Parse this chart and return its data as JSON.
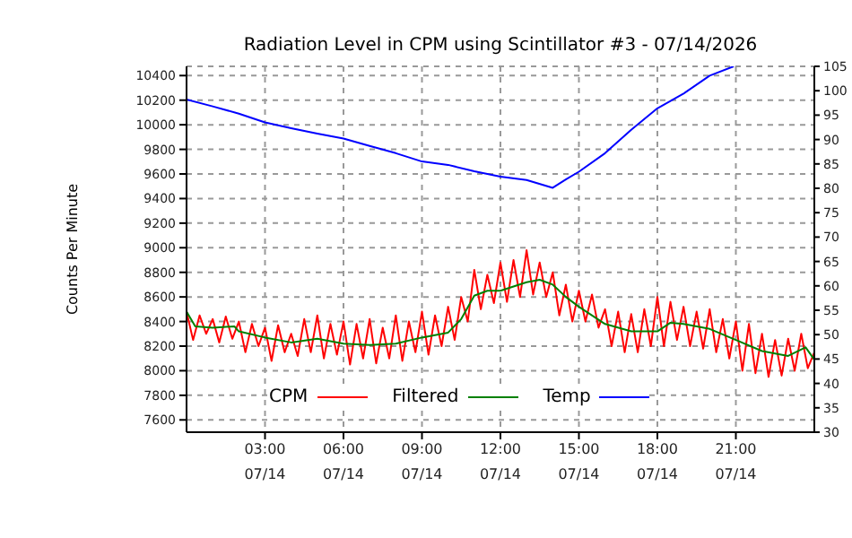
{
  "chart_data": {
    "type": "line",
    "title": "Radiation Level in CPM using Scintillator #3 - 07/14/2026",
    "ylabel": "Counts Per Minute",
    "xlim": [
      "2026-07-14T00:00",
      "2026-07-15T00:00"
    ],
    "xticks": [
      {
        "value": "2026-07-14T03:00",
        "label": "03:00\n07/14"
      },
      {
        "value": "2026-07-14T06:00",
        "label": "06:00\n07/14"
      },
      {
        "value": "2026-07-14T09:00",
        "label": "09:00\n07/14"
      },
      {
        "value": "2026-07-14T12:00",
        "label": "12:00\n07/14"
      },
      {
        "value": "2026-07-14T15:00",
        "label": "15:00\n07/14"
      },
      {
        "value": "2026-07-14T18:00",
        "label": "18:00\n07/14"
      },
      {
        "value": "2026-07-14T21:00",
        "label": "21:00\n07/14"
      }
    ],
    "ylim": [
      7500,
      10475
    ],
    "yticks": [
      7600,
      7800,
      8000,
      8200,
      8400,
      8600,
      8800,
      9000,
      9200,
      9400,
      9600,
      9800,
      10000,
      10200,
      10400
    ],
    "y2lim": [
      30,
      105
    ],
    "y2ticks": [
      30,
      35,
      40,
      45,
      50,
      55,
      60,
      65,
      70,
      75,
      80,
      85,
      90,
      95,
      100,
      105
    ],
    "grid": true,
    "legend": "bottom",
    "marker": "none",
    "line_style": "solid",
    "series": [
      {
        "name": "CPM",
        "color": "#ff0000",
        "x": [
          "2026-07-14T00:00",
          "2026-07-14T00:15",
          "2026-07-14T00:30",
          "2026-07-14T00:45",
          "2026-07-14T01:00",
          "2026-07-14T01:15",
          "2026-07-14T01:30",
          "2026-07-14T01:45",
          "2026-07-14T02:00",
          "2026-07-14T02:15",
          "2026-07-14T02:30",
          "2026-07-14T02:45",
          "2026-07-14T03:00",
          "2026-07-14T03:15",
          "2026-07-14T03:30",
          "2026-07-14T03:45",
          "2026-07-14T04:00",
          "2026-07-14T04:15",
          "2026-07-14T04:30",
          "2026-07-14T04:45",
          "2026-07-14T05:00",
          "2026-07-14T05:15",
          "2026-07-14T05:30",
          "2026-07-14T05:45",
          "2026-07-14T06:00",
          "2026-07-14T06:15",
          "2026-07-14T06:30",
          "2026-07-14T06:45",
          "2026-07-14T07:00",
          "2026-07-14T07:15",
          "2026-07-14T07:30",
          "2026-07-14T07:45",
          "2026-07-14T08:00",
          "2026-07-14T08:15",
          "2026-07-14T08:30",
          "2026-07-14T08:45",
          "2026-07-14T09:00",
          "2026-07-14T09:15",
          "2026-07-14T09:30",
          "2026-07-14T09:45",
          "2026-07-14T10:00",
          "2026-07-14T10:15",
          "2026-07-14T10:30",
          "2026-07-14T10:45",
          "2026-07-14T11:00",
          "2026-07-14T11:15",
          "2026-07-14T11:30",
          "2026-07-14T11:45",
          "2026-07-14T12:00",
          "2026-07-14T12:15",
          "2026-07-14T12:30",
          "2026-07-14T12:45",
          "2026-07-14T13:00",
          "2026-07-14T13:15",
          "2026-07-14T13:30",
          "2026-07-14T13:45",
          "2026-07-14T14:00",
          "2026-07-14T14:15",
          "2026-07-14T14:30",
          "2026-07-14T14:45",
          "2026-07-14T15:00",
          "2026-07-14T15:15",
          "2026-07-14T15:30",
          "2026-07-14T15:45",
          "2026-07-14T16:00",
          "2026-07-14T16:15",
          "2026-07-14T16:30",
          "2026-07-14T16:45",
          "2026-07-14T17:00",
          "2026-07-14T17:15",
          "2026-07-14T17:30",
          "2026-07-14T17:45",
          "2026-07-14T18:00",
          "2026-07-14T18:15",
          "2026-07-14T18:30",
          "2026-07-14T18:45",
          "2026-07-14T19:00",
          "2026-07-14T19:15",
          "2026-07-14T19:30",
          "2026-07-14T19:45",
          "2026-07-14T20:00",
          "2026-07-14T20:15",
          "2026-07-14T20:30",
          "2026-07-14T20:45",
          "2026-07-14T21:00",
          "2026-07-14T21:15",
          "2026-07-14T21:30",
          "2026-07-14T21:45",
          "2026-07-14T22:00",
          "2026-07-14T22:15",
          "2026-07-14T22:30",
          "2026-07-14T22:45",
          "2026-07-14T23:00",
          "2026-07-14T23:15",
          "2026-07-14T23:30",
          "2026-07-14T23:45",
          "2026-07-15T00:00"
        ],
        "values": [
          8480,
          8250,
          8450,
          8300,
          8420,
          8230,
          8440,
          8260,
          8400,
          8150,
          8380,
          8200,
          8350,
          8080,
          8370,
          8150,
          8300,
          8120,
          8420,
          8150,
          8450,
          8100,
          8380,
          8130,
          8400,
          8050,
          8380,
          8100,
          8420,
          8060,
          8350,
          8100,
          8450,
          8080,
          8400,
          8150,
          8480,
          8130,
          8450,
          8200,
          8520,
          8250,
          8600,
          8400,
          8820,
          8500,
          8780,
          8550,
          8880,
          8560,
          8900,
          8600,
          8980,
          8620,
          8880,
          8600,
          8800,
          8450,
          8700,
          8400,
          8650,
          8400,
          8620,
          8350,
          8500,
          8200,
          8480,
          8150,
          8460,
          8150,
          8500,
          8200,
          8600,
          8200,
          8560,
          8250,
          8520,
          8200,
          8480,
          8180,
          8500,
          8150,
          8420,
          8100,
          8400,
          8000,
          8380,
          7980,
          8300,
          7950,
          8250,
          7960,
          8260,
          8000,
          8300,
          8020,
          8150
        ]
      },
      {
        "name": "Filtered",
        "color": "#008000",
        "x": [
          "2026-07-14T00:00",
          "2026-07-14T00:20",
          "2026-07-14T01:00",
          "2026-07-14T01:50",
          "2026-07-14T02:00",
          "2026-07-14T03:00",
          "2026-07-14T04:00",
          "2026-07-14T05:00",
          "2026-07-14T06:00",
          "2026-07-14T07:00",
          "2026-07-14T08:00",
          "2026-07-14T09:00",
          "2026-07-14T10:00",
          "2026-07-14T10:30",
          "2026-07-14T11:00",
          "2026-07-14T11:30",
          "2026-07-14T12:00",
          "2026-07-14T13:00",
          "2026-07-14T13:30",
          "2026-07-14T14:00",
          "2026-07-14T14:30",
          "2026-07-14T15:00",
          "2026-07-14T16:00",
          "2026-07-14T17:00",
          "2026-07-14T18:00",
          "2026-07-14T18:30",
          "2026-07-14T19:00",
          "2026-07-14T20:00",
          "2026-07-14T21:00",
          "2026-07-14T22:00",
          "2026-07-14T23:00",
          "2026-07-14T23:40",
          "2026-07-15T00:00"
        ],
        "values": [
          8480,
          8360,
          8350,
          8360,
          8320,
          8270,
          8230,
          8260,
          8220,
          8210,
          8220,
          8270,
          8310,
          8420,
          8610,
          8650,
          8650,
          8720,
          8740,
          8700,
          8600,
          8520,
          8380,
          8320,
          8320,
          8390,
          8380,
          8340,
          8250,
          8160,
          8120,
          8190,
          8090
        ]
      },
      {
        "name": "Temp",
        "color": "#0000ff",
        "axis": "y2",
        "x": [
          "2026-07-14T00:00",
          "2026-07-14T01:00",
          "2026-07-14T02:00",
          "2026-07-14T03:00",
          "2026-07-14T04:00",
          "2026-07-14T05:00",
          "2026-07-14T06:00",
          "2026-07-14T07:00",
          "2026-07-14T08:00",
          "2026-07-14T09:00",
          "2026-07-14T10:00",
          "2026-07-14T11:00",
          "2026-07-14T12:00",
          "2026-07-14T13:00",
          "2026-07-14T14:00",
          "2026-07-14T14:30",
          "2026-07-14T15:00",
          "2026-07-14T16:00",
          "2026-07-14T17:00",
          "2026-07-14T18:00",
          "2026-07-14T19:00",
          "2026-07-14T20:00",
          "2026-07-14T20:55"
        ],
        "values": [
          98.2,
          96.8,
          95.3,
          93.5,
          92.3,
          91.2,
          90.2,
          88.7,
          87.2,
          85.5,
          84.8,
          83.5,
          82.4,
          81.7,
          80.1,
          81.8,
          83.4,
          87.2,
          92,
          96.4,
          99.4,
          103.1,
          105
        ]
      }
    ]
  }
}
